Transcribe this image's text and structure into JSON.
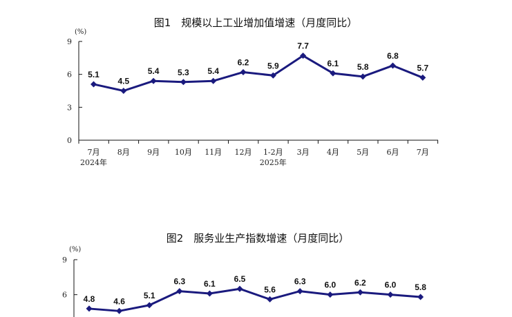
{
  "chart_data": [
    {
      "type": "line",
      "title": "图1　规模以上工业增加值增速（月度同比）",
      "unit": "(%)",
      "ylim": [
        0,
        9
      ],
      "yticks": [
        0,
        3,
        6,
        9
      ],
      "categories": [
        "7月",
        "8月",
        "9月",
        "10月",
        "11月",
        "12月",
        "1-2月",
        "3月",
        "4月",
        "5月",
        "6月",
        "7月"
      ],
      "category_sublabels": [
        "2024年",
        "",
        "",
        "",
        "",
        "",
        "2025年",
        "",
        "",
        "",
        "",
        ""
      ],
      "values": [
        5.1,
        4.5,
        5.4,
        5.3,
        5.4,
        6.2,
        5.9,
        7.7,
        6.1,
        5.8,
        6.8,
        5.7
      ],
      "labels": [
        "5.1",
        "4.5",
        "5.4",
        "5.3",
        "5.4",
        "6.2",
        "5.9",
        "7.7",
        "6.1",
        "5.8",
        "6.8",
        "5.7"
      ],
      "line_color": "#1a1a7e",
      "grid": false
    },
    {
      "type": "line",
      "title": "图2　服务业生产指数增速（月度同比）",
      "unit": "(%)",
      "ylim": [
        0,
        9
      ],
      "yticks": [
        6,
        9
      ],
      "values": [
        4.8,
        4.6,
        5.1,
        6.3,
        6.1,
        6.5,
        5.6,
        6.3,
        6.0,
        6.2,
        6.0,
        5.8
      ],
      "labels": [
        "4.8",
        "4.6",
        "5.1",
        "6.3",
        "6.1",
        "6.5",
        "5.6",
        "6.3",
        "6.0",
        "6.2",
        "6.0",
        "5.8"
      ],
      "line_color": "#1a1a7e",
      "grid": false
    }
  ]
}
